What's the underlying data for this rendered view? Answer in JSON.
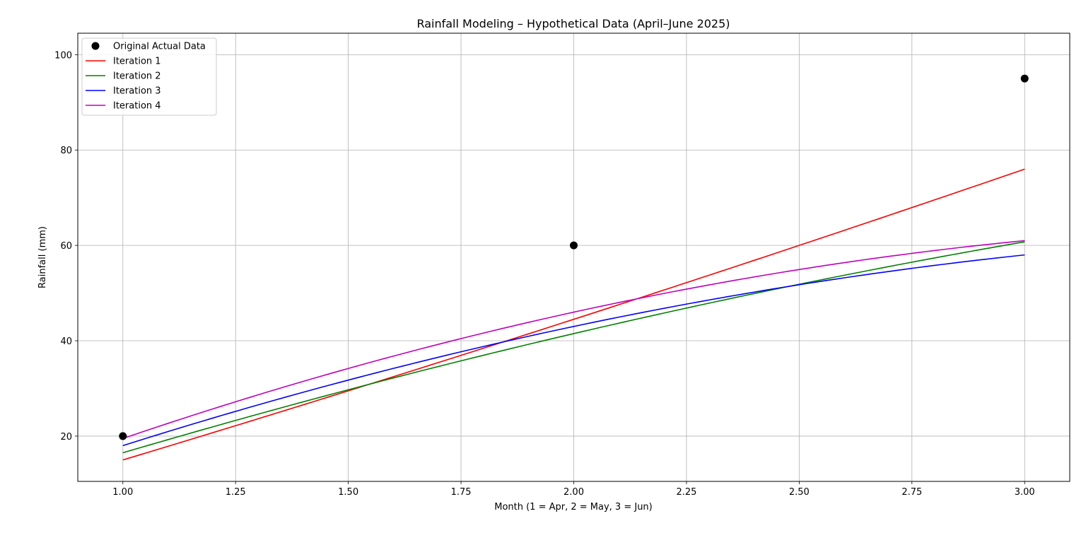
{
  "chart_data": {
    "type": "line",
    "title": "Rainfall Modeling – Hypothetical Data (April–June 2025)",
    "xlabel": "Month (1 = Apr, 2 = May, 3 = Jun)",
    "ylabel": "Rainfall (mm)",
    "xlim": [
      0.9,
      3.1
    ],
    "ylim": [
      10.5,
      104.5
    ],
    "xticks": [
      1.0,
      1.25,
      1.5,
      1.75,
      2.0,
      2.25,
      2.5,
      2.75,
      3.0
    ],
    "xtick_labels": [
      "1.00",
      "1.25",
      "1.50",
      "1.75",
      "2.00",
      "2.25",
      "2.50",
      "2.75",
      "3.00"
    ],
    "yticks": [
      20,
      40,
      60,
      80,
      100
    ],
    "ytick_labels": [
      "20",
      "40",
      "60",
      "80",
      "100"
    ],
    "grid": true,
    "legend_position": "top-left",
    "scatter": {
      "name": "Original Actual Data",
      "color": "#000000",
      "x": [
        1,
        2,
        3
      ],
      "y": [
        20,
        60,
        95
      ]
    },
    "series": [
      {
        "name": "Iteration 1",
        "color": "#ff0000",
        "coeffs": [
          -12.5,
          26.5,
          1.0
        ]
      },
      {
        "name": "Iteration 2",
        "color": "#008000",
        "coeffs": [
          -14.25,
          33.625,
          -2.875
        ]
      },
      {
        "name": "Iteration 3",
        "color": "#0000ff",
        "coeffs": [
          -17.0,
          40.0,
          -5.0
        ]
      },
      {
        "name": "Iteration 4",
        "color": "#bf00bf",
        "coeffs": [
          -18.5,
          43.75,
          -5.75
        ]
      }
    ]
  }
}
